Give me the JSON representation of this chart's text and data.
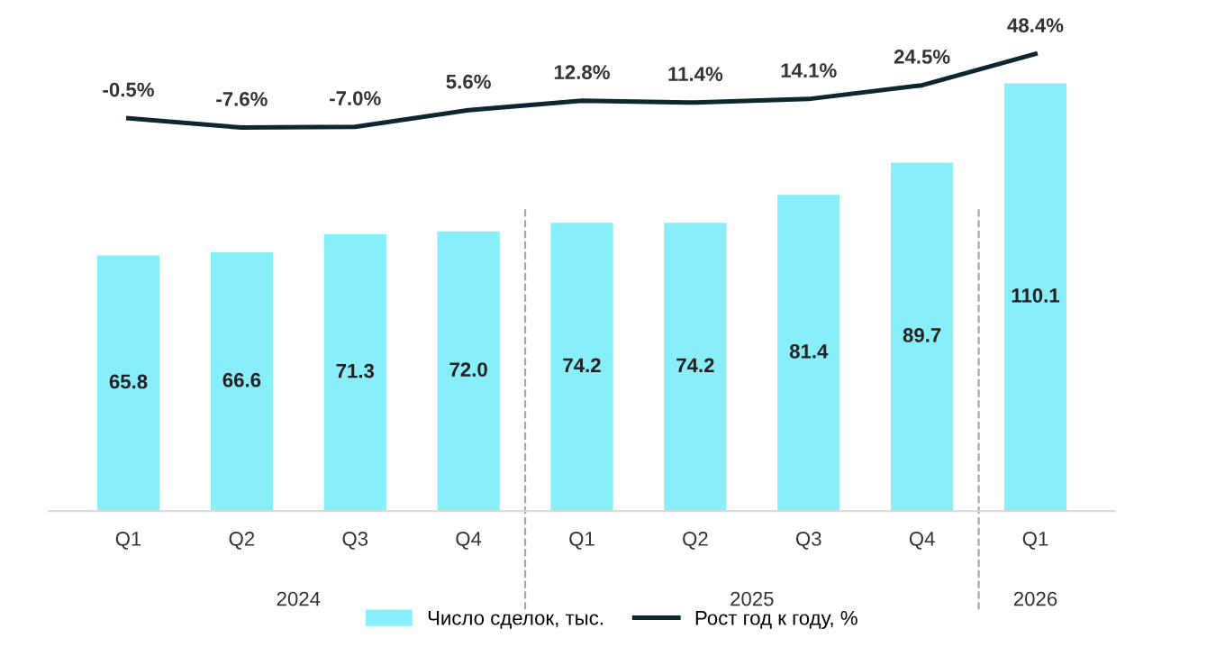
{
  "chart_data": {
    "type": "bar",
    "categories": [
      "Q1",
      "Q2",
      "Q3",
      "Q4",
      "Q1",
      "Q2",
      "Q3",
      "Q4",
      "Q1"
    ],
    "series": [
      {
        "name": "Число сделок, тыс.",
        "color": "#87eefa",
        "values": [
          65.8,
          66.6,
          71.3,
          72.0,
          74.2,
          74.2,
          81.4,
          89.7,
          110.1
        ],
        "value_labels": [
          "65.8",
          "66.6",
          "71.3",
          "72.0",
          "74.2",
          "74.2",
          "81.4",
          "89.7",
          "110.1"
        ]
      },
      {
        "name": "Рост год к году, %",
        "type": "line",
        "axis": "y2",
        "color": "#0d2630",
        "values": [
          -0.5,
          -7.6,
          -7.0,
          5.6,
          12.8,
          11.4,
          14.1,
          24.5,
          48.4
        ],
        "value_labels": [
          "-0.5%",
          "-7.6%",
          "-7.0%",
          "5.6%",
          "12.8%",
          "11.4%",
          "14.1%",
          "24.5%",
          "48.4%"
        ]
      }
    ],
    "tick_labels": "x",
    "annotations": [
      "2024",
      "2025",
      "2026"
    ],
    "grid": false,
    "legend": "bottom",
    "marker": "none",
    "line_style": "solid"
  }
}
